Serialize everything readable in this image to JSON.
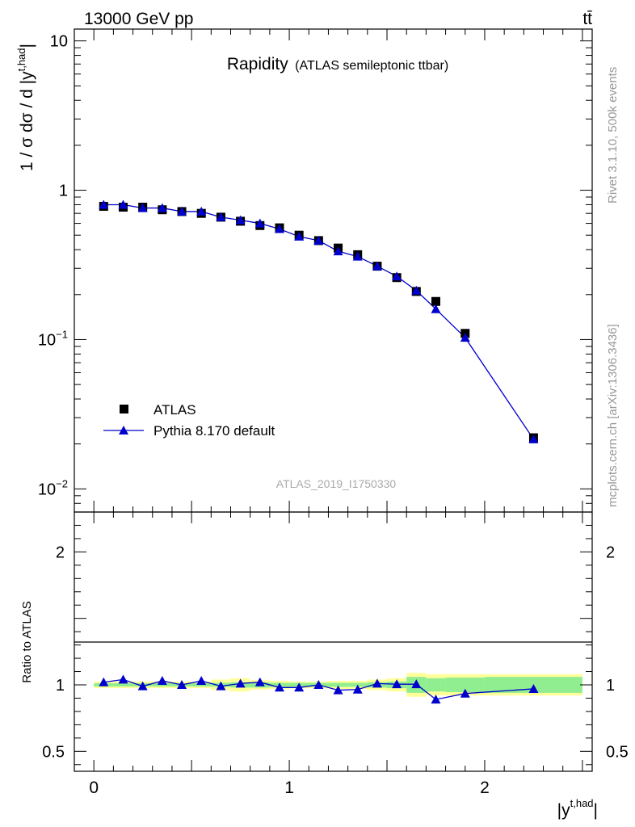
{
  "header": {
    "energy_label": "13000 GeV pp",
    "process_label": "tt̄"
  },
  "side_labels": {
    "rivet": "Rivet 3.1.10,  500k events",
    "mcplots": "mcplots.cern.ch [arXiv:1306.3436]"
  },
  "main_plot": {
    "title": "Rapidity",
    "subtitle": "(ATLAS semileptonic ttbar)",
    "watermark": "ATLAS_2019_I1750330",
    "ylabel": "1 / σ dσ / d |y",
    "ylabel_sup": "t,had",
    "ylabel_end": "|",
    "yticks": [
      {
        "value": 0.01,
        "base": "10",
        "exp": "−2"
      },
      {
        "value": 0.1,
        "base": "10",
        "exp": "−1"
      },
      {
        "value": 1,
        "base": "1",
        "exp": ""
      },
      {
        "value": 10,
        "base": "10",
        "exp": ""
      }
    ]
  },
  "ratio_plot": {
    "ylabel": "Ratio to ATLAS",
    "yticks": [
      {
        "value": 0.5,
        "label": "0.5"
      },
      {
        "value": 1,
        "label": "1"
      },
      {
        "value": 2,
        "label": "2"
      }
    ]
  },
  "xaxis": {
    "label": "|y",
    "label_sup": "t,had",
    "label_end": "|",
    "ticks": [
      {
        "value": 0,
        "label": "0"
      },
      {
        "value": 1,
        "label": "1"
      },
      {
        "value": 2,
        "label": "2"
      }
    ]
  },
  "legend": {
    "atlas": "ATLAS",
    "pythia": "Pythia 8.170 default"
  },
  "colors": {
    "atlas": "#000000",
    "pythia": "#0000cc",
    "band_inner": "#90ee90",
    "band_outer": "#ffff99"
  },
  "chart_data": {
    "type": "scatter",
    "xlim": [
      -0.1,
      2.55
    ],
    "ylim": [
      0.007,
      12
    ],
    "ylog": true,
    "ratio_ylim": [
      0.35,
      2.3
    ],
    "bins": [
      [
        0,
        0.1
      ],
      [
        0.1,
        0.2
      ],
      [
        0.2,
        0.3
      ],
      [
        0.3,
        0.4
      ],
      [
        0.4,
        0.5
      ],
      [
        0.5,
        0.6
      ],
      [
        0.6,
        0.7
      ],
      [
        0.7,
        0.8
      ],
      [
        0.8,
        0.9
      ],
      [
        0.9,
        1.0
      ],
      [
        1.0,
        1.1
      ],
      [
        1.1,
        1.2
      ],
      [
        1.2,
        1.3
      ],
      [
        1.3,
        1.4
      ],
      [
        1.4,
        1.5
      ],
      [
        1.5,
        1.6
      ],
      [
        1.6,
        1.7
      ],
      [
        1.7,
        1.8
      ],
      [
        1.8,
        2.0
      ],
      [
        2.0,
        2.5
      ]
    ],
    "x": [
      0.05,
      0.15,
      0.25,
      0.35,
      0.45,
      0.55,
      0.65,
      0.75,
      0.85,
      0.95,
      1.05,
      1.15,
      1.25,
      1.35,
      1.45,
      1.55,
      1.65,
      1.75,
      1.9,
      2.25
    ],
    "series": [
      {
        "name": "ATLAS",
        "values": [
          0.78,
          0.77,
          0.77,
          0.74,
          0.72,
          0.7,
          0.66,
          0.62,
          0.58,
          0.56,
          0.5,
          0.46,
          0.41,
          0.37,
          0.31,
          0.26,
          0.21,
          0.18,
          0.11,
          0.022
        ],
        "band_inner": [
          0.012,
          0.012,
          0.012,
          0.012,
          0.012,
          0.012,
          0.015,
          0.02,
          0.02,
          0.015,
          0.015,
          0.015,
          0.015,
          0.015,
          0.02,
          0.025,
          0.06,
          0.05,
          0.055,
          0.06
        ],
        "band_outer": [
          0.025,
          0.025,
          0.025,
          0.025,
          0.025,
          0.025,
          0.04,
          0.05,
          0.035,
          0.03,
          0.025,
          0.025,
          0.03,
          0.03,
          0.04,
          0.05,
          0.09,
          0.08,
          0.08,
          0.08
        ]
      },
      {
        "name": "Pythia 8.170 default",
        "values": [
          0.8,
          0.8,
          0.76,
          0.76,
          0.72,
          0.72,
          0.66,
          0.63,
          0.6,
          0.55,
          0.49,
          0.46,
          0.39,
          0.36,
          0.31,
          0.265,
          0.213,
          0.16,
          0.103,
          0.0215
        ],
        "ratio": [
          1.02,
          1.04,
          0.99,
          1.03,
          1.0,
          1.03,
          0.99,
          1.01,
          1.02,
          0.98,
          0.98,
          1.0,
          0.96,
          0.965,
          1.01,
          1.005,
          1.005,
          0.89,
          0.935,
          0.97
        ]
      }
    ]
  }
}
